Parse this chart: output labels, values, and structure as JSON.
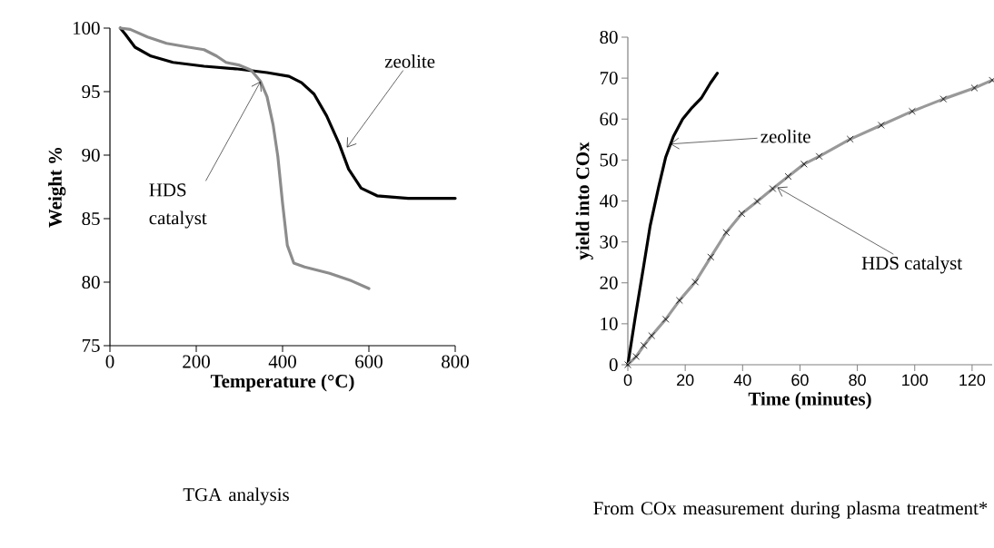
{
  "chart_data": [
    {
      "type": "line",
      "title": "TGA analysis",
      "xlabel": "Temperature (°C)",
      "ylabel": "Weight %",
      "xlim": [
        0,
        800
      ],
      "xticks": [
        0,
        200,
        400,
        600,
        800
      ],
      "ylim": [
        75,
        100
      ],
      "yticks": [
        75,
        80,
        85,
        90,
        95,
        100
      ],
      "marker": "none",
      "line_style": "solid",
      "grid": false,
      "annotations": [
        {
          "text": "zeolite",
          "x": 549,
          "y": 90.6
        },
        {
          "text": "HDS catalyst",
          "x": 349,
          "y": 95.8
        }
      ],
      "series": [
        {
          "color": "#000000",
          "x": [
            24,
            36,
            58,
            95,
            146,
            218,
            291,
            364,
            415,
            444,
            473,
            502,
            531,
            553,
            582,
            619,
            691,
            800
          ],
          "values": [
            100,
            99.5,
            98.5,
            97.8,
            97.3,
            97.0,
            96.8,
            96.5,
            96.2,
            95.7,
            94.8,
            93.1,
            90.9,
            88.9,
            87.4,
            86.8,
            86.6,
            86.6
          ]
        },
        {
          "color": "#8c8c8c",
          "x": [
            24,
            47,
            87,
            131,
            182,
            218,
            247,
            269,
            298,
            327,
            349,
            364,
            378,
            389,
            400,
            411,
            426,
            451,
            509,
            560,
            600
          ],
          "values": [
            100,
            99.9,
            99.3,
            98.8,
            98.5,
            98.3,
            97.8,
            97.3,
            97.1,
            96.7,
            95.8,
            94.6,
            92.4,
            89.9,
            86.2,
            82.9,
            81.5,
            81.2,
            80.7,
            80.1,
            79.5
          ]
        }
      ]
    },
    {
      "type": "line",
      "title": "From COx measurement during plasma treatment*",
      "xlabel": "Time (minutes)",
      "ylabel": "yield into COx",
      "xlim": [
        0,
        127
      ],
      "xticks": [
        0,
        20,
        40,
        60,
        80,
        100,
        120
      ],
      "ylim": [
        0,
        80
      ],
      "yticks": [
        0,
        10,
        20,
        30,
        40,
        50,
        60,
        70,
        80
      ],
      "line_style": "solid",
      "grid": false,
      "annotations": [
        "zeolite",
        {
          "text": "HDS catalyst",
          "x": 52.1,
          "y": 43.3
        }
      ],
      "series": [
        {
          "color": "#000000",
          "marker": "none",
          "x": [
            0,
            2.6,
            5.4,
            7.8,
            10.7,
            13.2,
            15.9,
            19.1,
            22.4,
            25.6,
            28.8,
            31.2
          ],
          "values": [
            0,
            11.7,
            23.6,
            34,
            43.3,
            50.7,
            55.8,
            60,
            62.8,
            65.1,
            68.8,
            71.2
          ]
        },
        {
          "color": "#999999",
          "marker": "cross",
          "x": [
            0,
            2.9,
            5.6,
            8.3,
            13.2,
            18,
            23.5,
            28.9,
            34.3,
            39.7,
            45.1,
            50.5,
            55.9,
            61.4,
            66.7,
            77.5,
            88.3,
            99.1,
            110,
            120.8,
            127
          ],
          "values": [
            0,
            2,
            4.7,
            7.1,
            11.1,
            15.7,
            20.2,
            26.3,
            32.3,
            36.9,
            39.9,
            43,
            46,
            49,
            50.9,
            55.1,
            58.5,
            61.9,
            64.9,
            67.6,
            69.5
          ]
        }
      ]
    }
  ]
}
